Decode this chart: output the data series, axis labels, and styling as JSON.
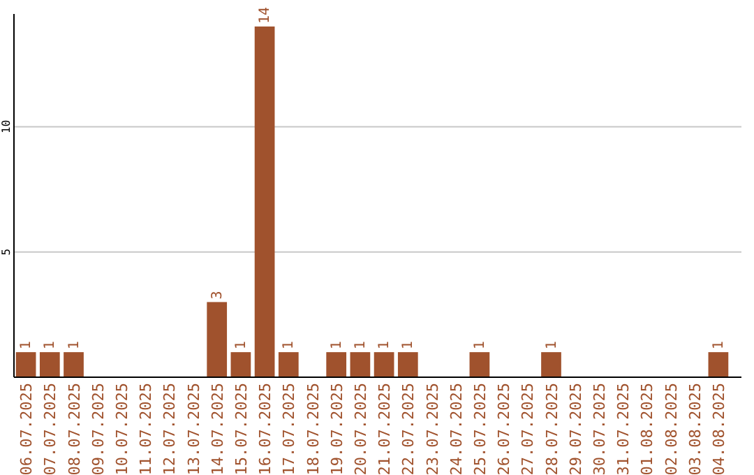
{
  "chart_data": {
    "type": "bar",
    "categories": [
      "06.07.2025",
      "07.07.2025",
      "08.07.2025",
      "09.07.2025",
      "10.07.2025",
      "11.07.2025",
      "12.07.2025",
      "13.07.2025",
      "14.07.2025",
      "15.07.2025",
      "16.07.2025",
      "17.07.2025",
      "18.07.2025",
      "19.07.2025",
      "20.07.2025",
      "21.07.2025",
      "22.07.2025",
      "23.07.2025",
      "24.07.2025",
      "25.07.2025",
      "26.07.2025",
      "27.07.2025",
      "28.07.2025",
      "29.07.2025",
      "30.07.2025",
      "31.07.2025",
      "01.08.2025",
      "02.08.2025",
      "03.08.2025",
      "04.08.2025"
    ],
    "values": [
      1,
      1,
      1,
      0,
      0,
      0,
      0,
      0,
      3,
      1,
      14,
      1,
      0,
      1,
      1,
      1,
      1,
      0,
      0,
      1,
      0,
      0,
      1,
      0,
      0,
      0,
      0,
      0,
      0,
      1
    ],
    "value_labels": [
      "1",
      "1",
      "1",
      null,
      null,
      null,
      null,
      null,
      "3",
      "1",
      "14",
      "1",
      null,
      "1",
      "1",
      "1",
      "1",
      null,
      null,
      "1",
      null,
      null,
      "1",
      null,
      null,
      null,
      null,
      null,
      null,
      "1"
    ],
    "color": "#a0522d",
    "ylim": [
      0,
      14.5
    ],
    "yticks": [
      5,
      10
    ],
    "grid": "y"
  }
}
